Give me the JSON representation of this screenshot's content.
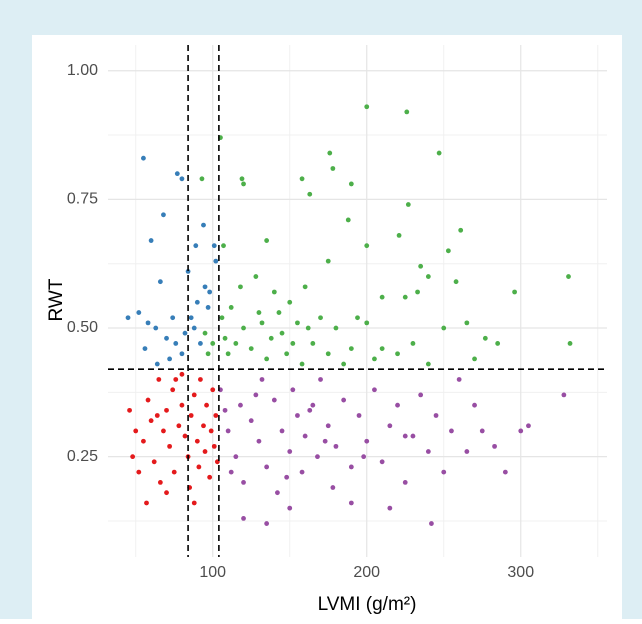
{
  "chart_data": {
    "type": "scatter",
    "x_label": "LVMI (g/m²)",
    "y_label": "RWT",
    "xlim": [
      32,
      356
    ],
    "ylim": [
      0.055,
      1.05
    ],
    "xticks": [
      100,
      200,
      300
    ],
    "yticks": [
      {
        "value": 0.25,
        "label": "0.25"
      },
      {
        "value": 0.5,
        "label": "0.50"
      },
      {
        "value": 0.75,
        "label": "0.75"
      },
      {
        "value": 1.0,
        "label": "1.00"
      }
    ],
    "x_minor_grid": [
      50,
      150,
      250,
      350
    ],
    "y_minor_grid": [
      0.125,
      0.375,
      0.625,
      0.875
    ],
    "grid": true,
    "reference_lines": {
      "x": [
        84,
        104
      ],
      "y": [
        0.42
      ]
    },
    "series": [
      {
        "color": "#377eb8",
        "x": [
          55,
          77,
          80,
          68,
          89,
          94,
          60,
          101,
          102,
          66,
          90,
          95,
          98,
          52,
          58,
          63,
          70,
          76,
          82,
          86,
          88,
          92,
          72,
          80,
          56,
          64,
          97,
          74,
          45,
          84
        ],
        "y": [
          0.83,
          0.8,
          0.79,
          0.72,
          0.66,
          0.7,
          0.67,
          0.66,
          0.63,
          0.59,
          0.55,
          0.58,
          0.57,
          0.53,
          0.51,
          0.5,
          0.48,
          0.47,
          0.49,
          0.52,
          0.5,
          0.47,
          0.44,
          0.45,
          0.46,
          0.43,
          0.54,
          0.52,
          0.52,
          0.61
        ]
      },
      {
        "color": "#4daf4a",
        "x": [
          105,
          107,
          93,
          119,
          120,
          176,
          178,
          158,
          163,
          190,
          188,
          200,
          226,
          247,
          227,
          200,
          221,
          261,
          135,
          175,
          253,
          235,
          240,
          258,
          331,
          296,
          332,
          210,
          225,
          233,
          277,
          285,
          265,
          250,
          194,
          200,
          210,
          240,
          270,
          150,
          140,
          160,
          130,
          120,
          115,
          110,
          125,
          135,
          145,
          155,
          165,
          175,
          185,
          170,
          180,
          112,
          118,
          128,
          138,
          148,
          158,
          106,
          108,
          132,
          143,
          152,
          162,
          190,
          205,
          220,
          230,
          100,
          97,
          95
        ],
        "y": [
          0.87,
          0.66,
          0.79,
          0.79,
          0.78,
          0.84,
          0.81,
          0.79,
          0.76,
          0.78,
          0.71,
          0.93,
          0.92,
          0.84,
          0.74,
          0.66,
          0.68,
          0.69,
          0.67,
          0.63,
          0.65,
          0.62,
          0.6,
          0.59,
          0.6,
          0.57,
          0.47,
          0.56,
          0.56,
          0.57,
          0.48,
          0.47,
          0.51,
          0.5,
          0.52,
          0.51,
          0.46,
          0.43,
          0.44,
          0.55,
          0.57,
          0.58,
          0.53,
          0.5,
          0.47,
          0.45,
          0.46,
          0.44,
          0.49,
          0.51,
          0.47,
          0.45,
          0.43,
          0.52,
          0.5,
          0.54,
          0.58,
          0.6,
          0.48,
          0.45,
          0.43,
          0.52,
          0.48,
          0.51,
          0.53,
          0.47,
          0.5,
          0.46,
          0.44,
          0.45,
          0.47,
          0.47,
          0.45,
          0.49
        ]
      },
      {
        "color": "#e41a1c",
        "x": [
          46,
          50,
          48,
          52,
          55,
          58,
          60,
          62,
          65,
          66,
          68,
          70,
          72,
          74,
          75,
          78,
          80,
          82,
          84,
          85,
          86,
          88,
          90,
          91,
          92,
          94,
          95,
          96,
          98,
          99,
          100,
          101,
          102,
          103,
          80,
          70,
          88,
          76,
          64,
          57
        ],
        "y": [
          0.34,
          0.3,
          0.25,
          0.22,
          0.28,
          0.36,
          0.32,
          0.24,
          0.4,
          0.2,
          0.3,
          0.34,
          0.27,
          0.38,
          0.22,
          0.31,
          0.35,
          0.29,
          0.25,
          0.19,
          0.33,
          0.37,
          0.28,
          0.23,
          0.4,
          0.31,
          0.26,
          0.35,
          0.21,
          0.3,
          0.38,
          0.27,
          0.33,
          0.24,
          0.41,
          0.18,
          0.16,
          0.4,
          0.33,
          0.16
        ]
      },
      {
        "color": "#984ea3",
        "x": [
          105,
          110,
          115,
          118,
          120,
          125,
          130,
          132,
          135,
          140,
          142,
          145,
          150,
          152,
          155,
          158,
          160,
          165,
          168,
          170,
          175,
          178,
          180,
          185,
          190,
          195,
          200,
          205,
          210,
          215,
          220,
          225,
          230,
          235,
          240,
          245,
          250,
          255,
          260,
          265,
          270,
          275,
          283,
          290,
          300,
          305,
          328,
          242,
          215,
          150,
          120,
          135,
          190,
          112,
          108,
          128,
          148,
          163,
          173,
          198,
          225
        ],
        "y": [
          0.38,
          0.3,
          0.25,
          0.35,
          0.2,
          0.32,
          0.28,
          0.4,
          0.23,
          0.36,
          0.18,
          0.3,
          0.26,
          0.38,
          0.33,
          0.22,
          0.29,
          0.35,
          0.25,
          0.4,
          0.31,
          0.19,
          0.27,
          0.36,
          0.23,
          0.33,
          0.28,
          0.38,
          0.24,
          0.31,
          0.35,
          0.2,
          0.29,
          0.37,
          0.26,
          0.33,
          0.22,
          0.3,
          0.4,
          0.26,
          0.35,
          0.3,
          0.27,
          0.22,
          0.3,
          0.31,
          0.37,
          0.12,
          0.15,
          0.15,
          0.13,
          0.12,
          0.16,
          0.22,
          0.34,
          0.37,
          0.21,
          0.34,
          0.28,
          0.25,
          0.29
        ]
      }
    ]
  }
}
